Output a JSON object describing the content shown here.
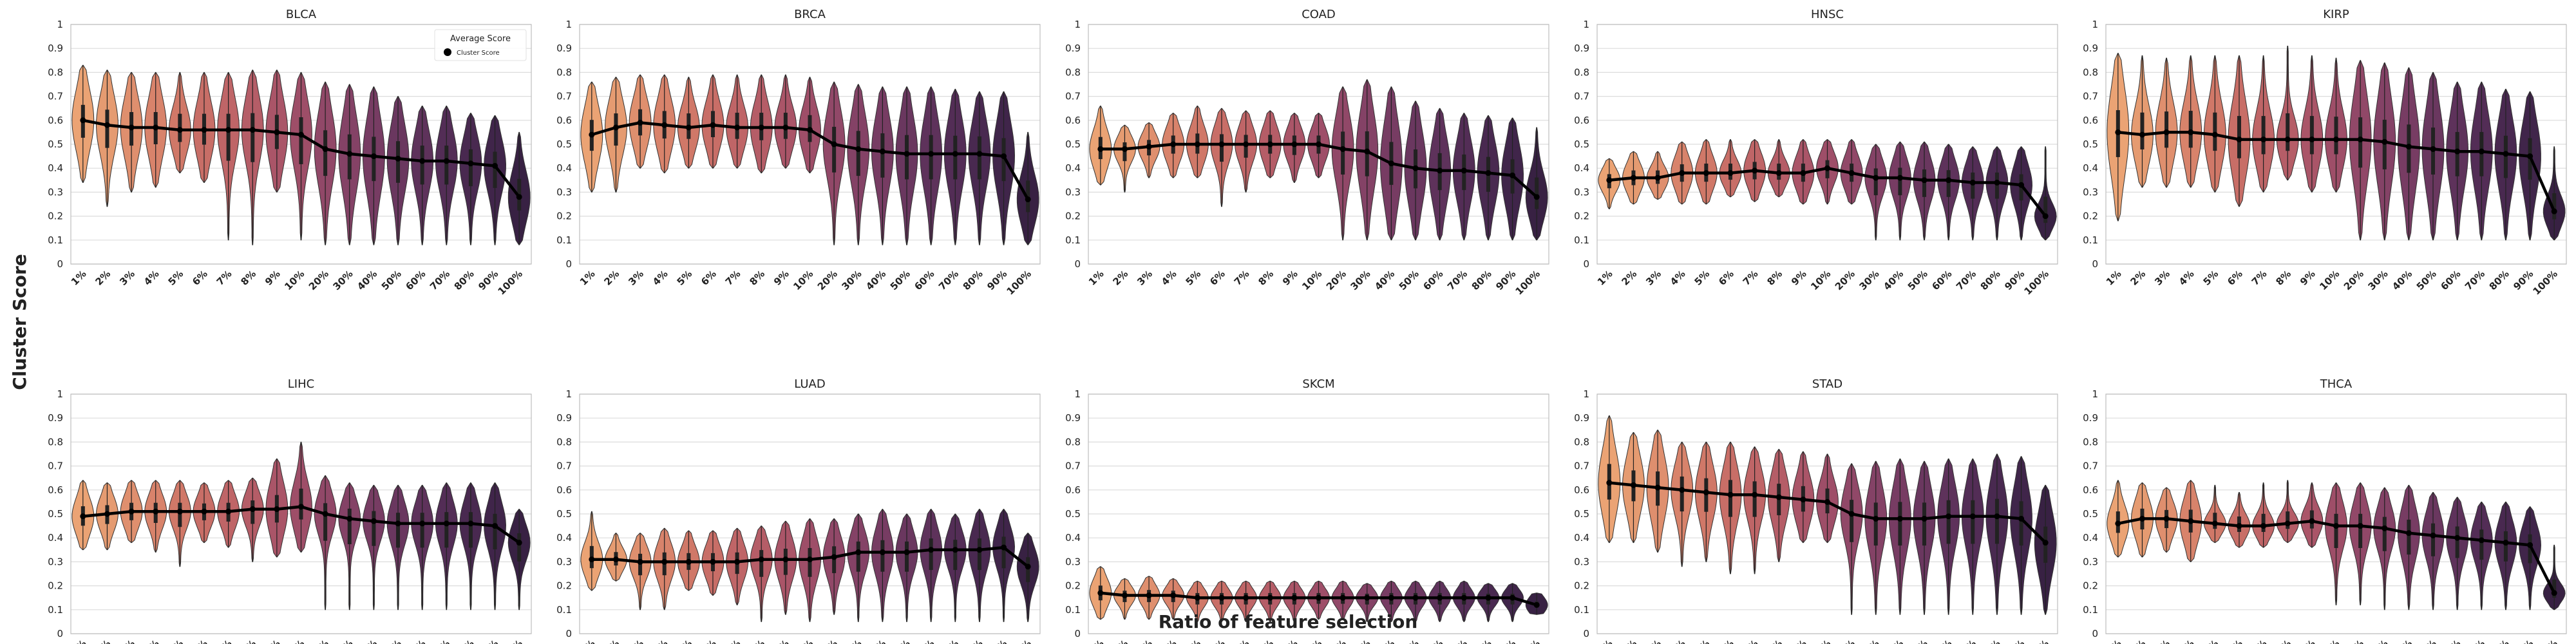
{
  "chart_data": {
    "type": "violin",
    "xlabel": "Ratio of feature selection",
    "ylabel": "Cluster Score",
    "ylim": [
      0,
      1
    ],
    "yticks": [
      "0",
      "0.1",
      "0.2",
      "0.3",
      "0.4",
      "0.5",
      "0.6",
      "0.7",
      "0.8",
      "0.9",
      "1"
    ],
    "categories": [
      "1%",
      "2%",
      "3%",
      "4%",
      "5%",
      "6%",
      "7%",
      "8%",
      "9%",
      "10%",
      "20%",
      "30%",
      "40%",
      "50%",
      "60%",
      "70%",
      "80%",
      "90%",
      "100%"
    ],
    "grid": true,
    "legend": {
      "title": "Average Score",
      "entry": "Cluster Score",
      "placement": "top-right",
      "panel": 0
    },
    "colors": [
      "#eba374",
      "#e59b71",
      "#df8f6e",
      "#d8836b",
      "#d07868",
      "#c86e67",
      "#bf6567",
      "#b55d67",
      "#aa5568",
      "#9e4e68",
      "#914868",
      "#844266",
      "#773c63",
      "#6a375f",
      "#5e325b",
      "#532d56",
      "#492950",
      "#40254a",
      "#382143"
    ],
    "line_color": "#000000",
    "panels": [
      {
        "name": "BLCA",
        "mean": [
          0.6,
          0.58,
          0.57,
          0.57,
          0.56,
          0.56,
          0.56,
          0.56,
          0.55,
          0.54,
          0.48,
          0.46,
          0.45,
          0.44,
          0.43,
          0.43,
          0.42,
          0.41,
          0.28
        ],
        "min": [
          0.34,
          0.24,
          0.3,
          0.32,
          0.38,
          0.34,
          0.1,
          0.08,
          0.3,
          0.1,
          0.08,
          0.08,
          0.08,
          0.08,
          0.08,
          0.08,
          0.08,
          0.08,
          0.08
        ],
        "max": [
          0.83,
          0.81,
          0.8,
          0.8,
          0.8,
          0.8,
          0.8,
          0.81,
          0.81,
          0.8,
          0.76,
          0.75,
          0.74,
          0.7,
          0.66,
          0.66,
          0.63,
          0.62,
          0.55
        ]
      },
      {
        "name": "BRCA",
        "mean": [
          0.54,
          0.57,
          0.59,
          0.58,
          0.57,
          0.58,
          0.57,
          0.57,
          0.57,
          0.56,
          0.5,
          0.48,
          0.47,
          0.46,
          0.46,
          0.46,
          0.46,
          0.45,
          0.27
        ],
        "min": [
          0.3,
          0.3,
          0.4,
          0.38,
          0.4,
          0.4,
          0.4,
          0.38,
          0.4,
          0.38,
          0.08,
          0.08,
          0.08,
          0.08,
          0.08,
          0.08,
          0.08,
          0.08,
          0.08
        ],
        "max": [
          0.76,
          0.78,
          0.79,
          0.79,
          0.78,
          0.79,
          0.79,
          0.79,
          0.79,
          0.78,
          0.76,
          0.75,
          0.74,
          0.74,
          0.74,
          0.73,
          0.72,
          0.72,
          0.55
        ]
      },
      {
        "name": "COAD",
        "mean": [
          0.48,
          0.48,
          0.49,
          0.5,
          0.5,
          0.5,
          0.5,
          0.5,
          0.5,
          0.5,
          0.48,
          0.47,
          0.42,
          0.4,
          0.39,
          0.39,
          0.38,
          0.37,
          0.28
        ],
        "min": [
          0.33,
          0.3,
          0.36,
          0.36,
          0.36,
          0.24,
          0.3,
          0.36,
          0.34,
          0.36,
          0.1,
          0.1,
          0.1,
          0.1,
          0.1,
          0.1,
          0.1,
          0.1,
          0.1
        ],
        "max": [
          0.66,
          0.58,
          0.59,
          0.63,
          0.66,
          0.65,
          0.64,
          0.64,
          0.63,
          0.63,
          0.74,
          0.77,
          0.74,
          0.68,
          0.65,
          0.63,
          0.62,
          0.61,
          0.57
        ]
      },
      {
        "name": "HNSC",
        "mean": [
          0.35,
          0.36,
          0.36,
          0.38,
          0.38,
          0.38,
          0.39,
          0.38,
          0.38,
          0.4,
          0.38,
          0.36,
          0.36,
          0.35,
          0.35,
          0.34,
          0.34,
          0.33,
          0.2
        ],
        "min": [
          0.23,
          0.25,
          0.27,
          0.25,
          0.25,
          0.28,
          0.26,
          0.28,
          0.25,
          0.25,
          0.25,
          0.1,
          0.1,
          0.1,
          0.1,
          0.1,
          0.1,
          0.1,
          0.1
        ],
        "max": [
          0.44,
          0.47,
          0.47,
          0.51,
          0.52,
          0.52,
          0.52,
          0.52,
          0.52,
          0.52,
          0.52,
          0.5,
          0.51,
          0.51,
          0.5,
          0.49,
          0.49,
          0.49,
          0.49
        ]
      },
      {
        "name": "KIRP",
        "mean": [
          0.55,
          0.54,
          0.55,
          0.55,
          0.54,
          0.52,
          0.52,
          0.52,
          0.52,
          0.52,
          0.52,
          0.51,
          0.49,
          0.48,
          0.47,
          0.47,
          0.46,
          0.45,
          0.22
        ],
        "min": [
          0.18,
          0.32,
          0.32,
          0.32,
          0.3,
          0.24,
          0.3,
          0.35,
          0.3,
          0.3,
          0.1,
          0.1,
          0.1,
          0.1,
          0.1,
          0.1,
          0.1,
          0.1,
          0.1
        ],
        "max": [
          0.88,
          0.87,
          0.86,
          0.87,
          0.87,
          0.87,
          0.87,
          0.91,
          0.87,
          0.86,
          0.85,
          0.84,
          0.82,
          0.8,
          0.76,
          0.76,
          0.73,
          0.72,
          0.49
        ]
      },
      {
        "name": "LIHC",
        "mean": [
          0.49,
          0.5,
          0.51,
          0.51,
          0.51,
          0.51,
          0.51,
          0.52,
          0.52,
          0.53,
          0.5,
          0.48,
          0.47,
          0.46,
          0.46,
          0.46,
          0.46,
          0.45,
          0.38
        ],
        "min": [
          0.35,
          0.35,
          0.38,
          0.34,
          0.28,
          0.38,
          0.36,
          0.3,
          0.32,
          0.34,
          0.1,
          0.1,
          0.1,
          0.1,
          0.1,
          0.1,
          0.1,
          0.1,
          0.1
        ],
        "max": [
          0.64,
          0.63,
          0.64,
          0.64,
          0.64,
          0.63,
          0.64,
          0.65,
          0.73,
          0.8,
          0.66,
          0.63,
          0.62,
          0.62,
          0.62,
          0.63,
          0.63,
          0.63,
          0.52
        ]
      },
      {
        "name": "LUAD",
        "mean": [
          0.31,
          0.31,
          0.3,
          0.3,
          0.3,
          0.3,
          0.3,
          0.31,
          0.31,
          0.31,
          0.32,
          0.34,
          0.34,
          0.34,
          0.35,
          0.35,
          0.35,
          0.36,
          0.28
        ],
        "min": [
          0.18,
          0.22,
          0.1,
          0.1,
          0.18,
          0.16,
          0.12,
          0.05,
          0.08,
          0.05,
          0.08,
          0.05,
          0.05,
          0.05,
          0.05,
          0.05,
          0.05,
          0.05,
          0.05
        ],
        "max": [
          0.51,
          0.42,
          0.42,
          0.44,
          0.43,
          0.43,
          0.44,
          0.45,
          0.47,
          0.48,
          0.48,
          0.5,
          0.52,
          0.5,
          0.52,
          0.5,
          0.52,
          0.52,
          0.42
        ]
      },
      {
        "name": "SKCM",
        "mean": [
          0.17,
          0.16,
          0.16,
          0.16,
          0.15,
          0.15,
          0.15,
          0.15,
          0.15,
          0.15,
          0.15,
          0.15,
          0.15,
          0.15,
          0.15,
          0.15,
          0.15,
          0.15,
          0.12
        ],
        "min": [
          0.06,
          0.06,
          0.06,
          0.06,
          0.05,
          0.05,
          0.05,
          0.05,
          0.05,
          0.06,
          0.06,
          0.05,
          0.05,
          0.05,
          0.05,
          0.05,
          0.05,
          0.05,
          0.08
        ],
        "max": [
          0.28,
          0.23,
          0.24,
          0.23,
          0.22,
          0.22,
          0.22,
          0.22,
          0.22,
          0.22,
          0.22,
          0.21,
          0.22,
          0.22,
          0.22,
          0.22,
          0.21,
          0.21,
          0.17
        ]
      },
      {
        "name": "STAD",
        "mean": [
          0.63,
          0.62,
          0.61,
          0.6,
          0.59,
          0.58,
          0.58,
          0.57,
          0.56,
          0.55,
          0.5,
          0.48,
          0.48,
          0.48,
          0.49,
          0.49,
          0.49,
          0.48,
          0.38
        ],
        "min": [
          0.38,
          0.38,
          0.34,
          0.28,
          0.3,
          0.25,
          0.25,
          0.3,
          0.38,
          0.38,
          0.08,
          0.08,
          0.08,
          0.08,
          0.08,
          0.08,
          0.08,
          0.08,
          0.08
        ],
        "max": [
          0.91,
          0.84,
          0.85,
          0.8,
          0.8,
          0.8,
          0.78,
          0.77,
          0.76,
          0.75,
          0.71,
          0.72,
          0.73,
          0.72,
          0.73,
          0.73,
          0.75,
          0.74,
          0.62
        ]
      },
      {
        "name": "THCA",
        "mean": [
          0.46,
          0.48,
          0.48,
          0.47,
          0.46,
          0.45,
          0.45,
          0.46,
          0.47,
          0.45,
          0.45,
          0.44,
          0.42,
          0.41,
          0.4,
          0.39,
          0.38,
          0.37,
          0.17
        ],
        "min": [
          0.32,
          0.32,
          0.34,
          0.3,
          0.38,
          0.36,
          0.36,
          0.38,
          0.36,
          0.12,
          0.12,
          0.1,
          0.1,
          0.1,
          0.1,
          0.1,
          0.1,
          0.1,
          0.1
        ],
        "max": [
          0.64,
          0.63,
          0.61,
          0.64,
          0.62,
          0.59,
          0.63,
          0.64,
          0.63,
          0.63,
          0.63,
          0.61,
          0.62,
          0.59,
          0.57,
          0.55,
          0.55,
          0.53,
          0.37
        ]
      }
    ]
  }
}
